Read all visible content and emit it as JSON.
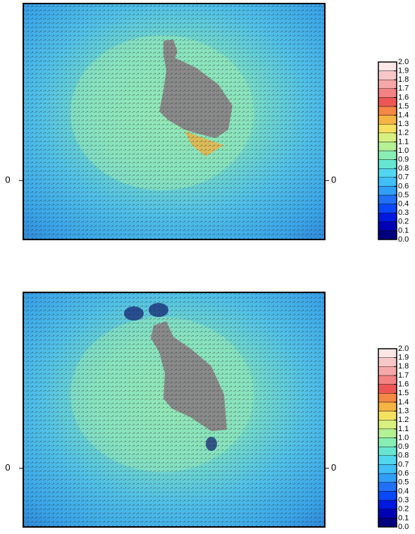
{
  "chart_data": [
    {
      "type": "vector-field",
      "ylim": [
        -1,
        3
      ],
      "yticks": [
        0
      ],
      "y2lim": [
        -1,
        3
      ],
      "y2ticks": [
        0
      ],
      "colorbar": {
        "lim": [
          0,
          2
        ],
        "ticks": [
          {
            "value": 0,
            "label": "0.0"
          },
          0.1,
          0.2,
          0.3,
          0.4,
          0.5,
          0.6,
          0.7,
          0.8,
          0.9,
          {
            "value": 1,
            "label": "1.0"
          },
          1.1,
          1.2,
          1.3,
          1.4,
          1.5,
          1.6,
          1.7,
          1.8,
          1.9,
          {
            "value": 2,
            "label": "2.0"
          }
        ],
        "colors": [
          "#00007f",
          "#0000b4",
          "#0018e0",
          "#0848f8",
          "#2070f8",
          "#309ff8",
          "#40bff8",
          "#50d6ee",
          "#66e6d0",
          "#88efb4",
          "#b4f094",
          "#d8f080",
          "#f6e060",
          "#f6b444",
          "#f48844",
          "#ee5656",
          "#f48282",
          "#f6a8a8",
          "#f8c8c8",
          "#fde6e6"
        ]
      }
    },
    {
      "type": "vector-field",
      "ylim": [
        -1,
        3
      ],
      "yticks": [
        0
      ],
      "y2lim": [
        -1,
        3
      ],
      "y2ticks": [
        0
      ],
      "colorbar": {
        "lim": [
          0,
          2
        ],
        "ticks": [
          {
            "value": 0,
            "label": "0.0"
          },
          0.1,
          0.2,
          0.3,
          0.4,
          0.5,
          0.6,
          0.7,
          0.8,
          0.9,
          {
            "value": 1,
            "label": "1.0"
          },
          1.1,
          1.2,
          1.3,
          1.4,
          1.5,
          1.6,
          1.7,
          1.8,
          1.9,
          {
            "value": 2,
            "label": "2.0"
          }
        ],
        "colors": [
          "#00007f",
          "#0000b4",
          "#0018e0",
          "#0848f8",
          "#2070f8",
          "#309ff8",
          "#40bff8",
          "#50d6ee",
          "#66e6d0",
          "#88efb4",
          "#b4f094",
          "#d8f080",
          "#f6e060",
          "#f6b444",
          "#f48844",
          "#ee5656",
          "#f48282",
          "#f6a8a8",
          "#f8c8c8",
          "#fde6e6"
        ]
      }
    }
  ]
}
